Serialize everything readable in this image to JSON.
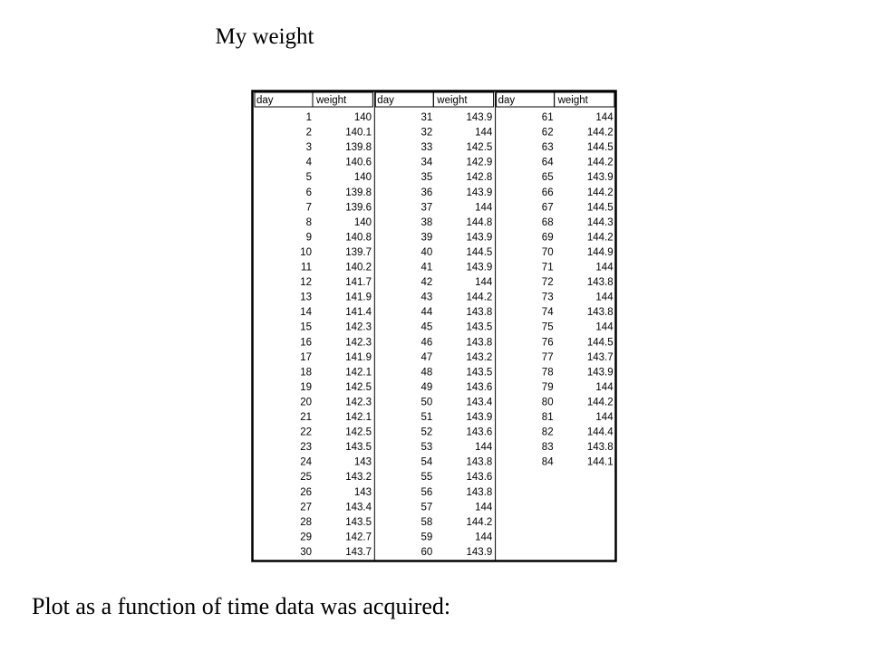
{
  "title": "My weight",
  "table": {
    "groups": [
      {
        "headers": [
          "day",
          "weight"
        ],
        "rows": [
          [
            1,
            140
          ],
          [
            2,
            140.1
          ],
          [
            3,
            139.8
          ],
          [
            4,
            140.6
          ],
          [
            5,
            140
          ],
          [
            6,
            139.8
          ],
          [
            7,
            139.6
          ],
          [
            8,
            140
          ],
          [
            9,
            140.8
          ],
          [
            10,
            139.7
          ],
          [
            11,
            140.2
          ],
          [
            12,
            141.7
          ],
          [
            13,
            141.9
          ],
          [
            14,
            141.4
          ],
          [
            15,
            142.3
          ],
          [
            16,
            142.3
          ],
          [
            17,
            141.9
          ],
          [
            18,
            142.1
          ],
          [
            19,
            142.5
          ],
          [
            20,
            142.3
          ],
          [
            21,
            142.1
          ],
          [
            22,
            142.5
          ],
          [
            23,
            143.5
          ],
          [
            24,
            143
          ],
          [
            25,
            143.2
          ],
          [
            26,
            143
          ],
          [
            27,
            143.4
          ],
          [
            28,
            143.5
          ],
          [
            29,
            142.7
          ],
          [
            30,
            143.7
          ]
        ]
      },
      {
        "headers": [
          "day",
          "weight"
        ],
        "rows": [
          [
            31,
            143.9
          ],
          [
            32,
            144
          ],
          [
            33,
            142.5
          ],
          [
            34,
            142.9
          ],
          [
            35,
            142.8
          ],
          [
            36,
            143.9
          ],
          [
            37,
            144
          ],
          [
            38,
            144.8
          ],
          [
            39,
            143.9
          ],
          [
            40,
            144.5
          ],
          [
            41,
            143.9
          ],
          [
            42,
            144
          ],
          [
            43,
            144.2
          ],
          [
            44,
            143.8
          ],
          [
            45,
            143.5
          ],
          [
            46,
            143.8
          ],
          [
            47,
            143.2
          ],
          [
            48,
            143.5
          ],
          [
            49,
            143.6
          ],
          [
            50,
            143.4
          ],
          [
            51,
            143.9
          ],
          [
            52,
            143.6
          ],
          [
            53,
            144
          ],
          [
            54,
            143.8
          ],
          [
            55,
            143.6
          ],
          [
            56,
            143.8
          ],
          [
            57,
            144
          ],
          [
            58,
            144.2
          ],
          [
            59,
            144
          ],
          [
            60,
            143.9
          ]
        ]
      },
      {
        "headers": [
          "day",
          "weight"
        ],
        "rows": [
          [
            61,
            144
          ],
          [
            62,
            144.2
          ],
          [
            63,
            144.5
          ],
          [
            64,
            144.2
          ],
          [
            65,
            143.9
          ],
          [
            66,
            144.2
          ],
          [
            67,
            144.5
          ],
          [
            68,
            144.3
          ],
          [
            69,
            144.2
          ],
          [
            70,
            144.9
          ],
          [
            71,
            144
          ],
          [
            72,
            143.8
          ],
          [
            73,
            144
          ],
          [
            74,
            143.8
          ],
          [
            75,
            144
          ],
          [
            76,
            144.5
          ],
          [
            77,
            143.7
          ],
          [
            78,
            143.9
          ],
          [
            79,
            144
          ],
          [
            80,
            144.2
          ],
          [
            81,
            144
          ],
          [
            82,
            144.4
          ],
          [
            83,
            143.8
          ],
          [
            84,
            144.1
          ]
        ]
      }
    ]
  },
  "caption": "Plot as a function of time data was acquired:"
}
